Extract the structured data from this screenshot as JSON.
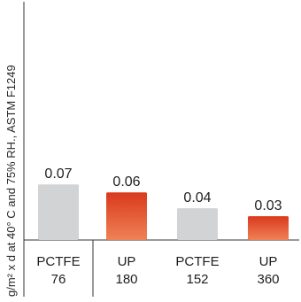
{
  "chart_data": {
    "type": "bar",
    "title": "",
    "xlabel": "",
    "ylabel": "g/m² x d at 40° C and 75% RH., ASTM F1249",
    "categories": [
      {
        "line1": "PCTFE",
        "line2": "76"
      },
      {
        "line1": "UP",
        "line2": "180"
      },
      {
        "line1": "PCTFE",
        "line2": "152"
      },
      {
        "line1": "UP",
        "line2": "360"
      }
    ],
    "values": [
      0.07,
      0.06,
      0.04,
      0.03
    ],
    "value_labels": [
      "0.07",
      "0.06",
      "0.04",
      "0.03"
    ],
    "ylim": [
      0,
      0.3
    ],
    "grid": false,
    "legend": "none",
    "colors": {
      "PCTFE": "#d2d3d4",
      "UP_top": "#d9391c",
      "UP_bottom": "#ef8256",
      "axis": "#333333",
      "text": "#1e1e1e"
    }
  }
}
